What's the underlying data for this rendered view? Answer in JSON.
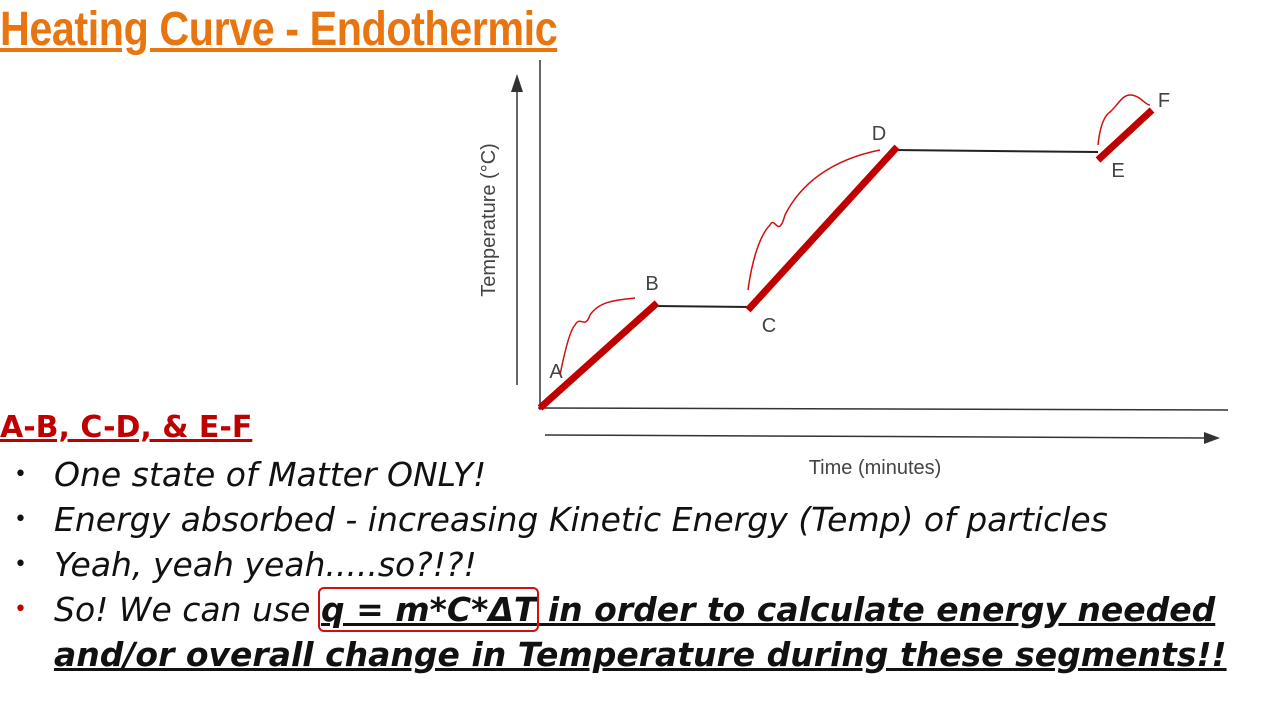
{
  "header": {
    "title": "Heating Curve - Endothermic"
  },
  "diagram": {
    "y_axis_label": "Temperature (°C)",
    "x_axis_label": "Time (minutes)",
    "points": [
      "A",
      "B",
      "C",
      "D",
      "E",
      "F"
    ]
  },
  "section": {
    "heading": "A-B, C-D, & E-F",
    "bullets": [
      "One state of Matter ONLY!",
      "Energy absorbed - increasing Kinetic Energy (Temp) of particles",
      "Yeah, yeah yeah.....so?!?!"
    ],
    "last_bullet": {
      "lead": "So! We can use ",
      "formula": "q = m*C*ΔT",
      "rest": " in order to calculate energy needed and/or overall change in Temperature during these segments!!"
    }
  }
}
